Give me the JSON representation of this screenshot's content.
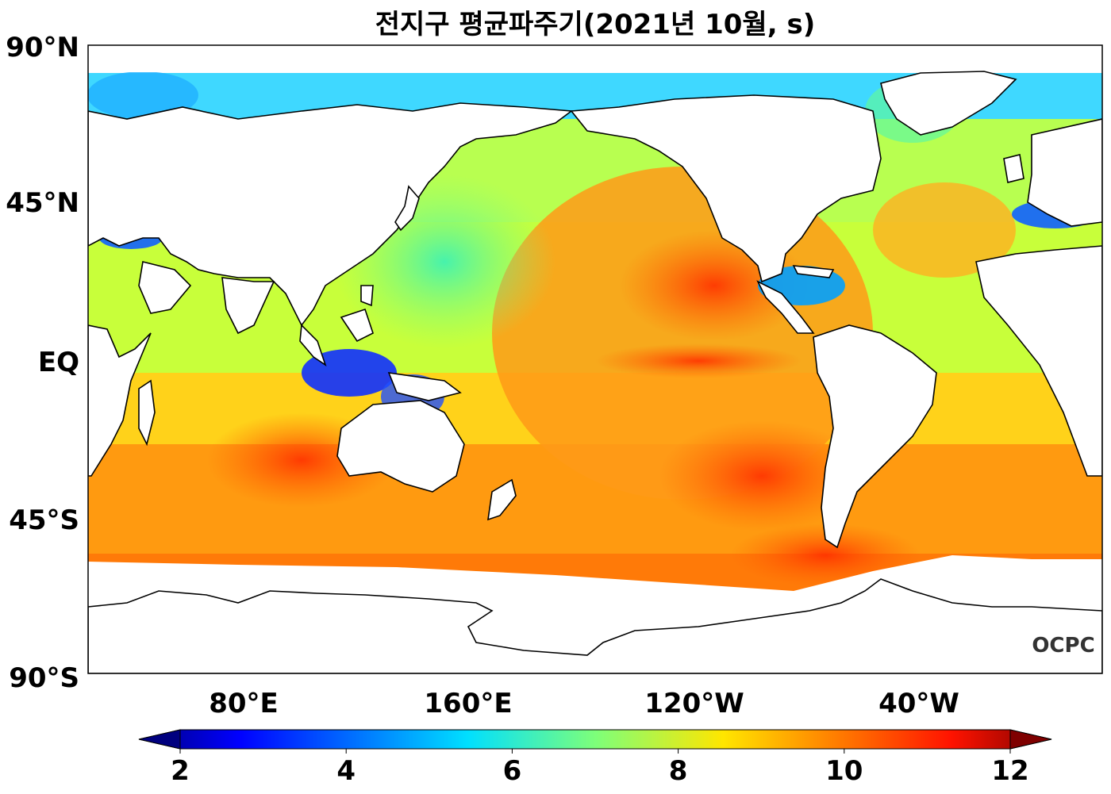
{
  "title": "전지구 평균파주기(2021년 10월, s)",
  "map": {
    "lat_labels": [
      "90°N",
      "45°N",
      "EQ",
      "45°S",
      "90°S"
    ],
    "lon_labels": [
      "80°E",
      "160°E",
      "120°W",
      "40°W"
    ],
    "projection": "PlateCarree, central longitude 200°E",
    "variable": "mean wave period"
  },
  "colorbar": {
    "colormap": "jet",
    "range": [
      2,
      12
    ],
    "ticks": [
      "2",
      "4",
      "6",
      "8",
      "10",
      "12"
    ],
    "extend": "both"
  },
  "logo": "OCPC"
}
